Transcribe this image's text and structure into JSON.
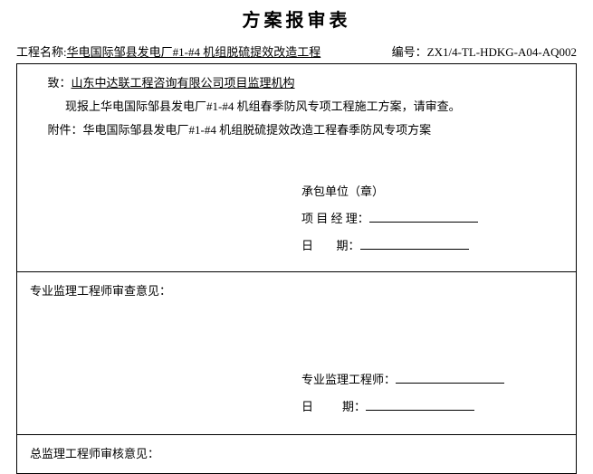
{
  "title": "方案报审表",
  "meta": {
    "projectNameLabel": "工程名称:",
    "projectName": "华电国际邹县发电厂#1-#4 机组脱硫提效改造工程",
    "codeLabel": "编号：",
    "code": "ZX1/4-TL-HDKG-A04-AQ002"
  },
  "section1": {
    "toLabel": "致：",
    "toValue": "山东中达联工程咨询有限公司项目监理机构",
    "body": "现报上华电国际邹县发电厂#1-#4 机组春季防风专项工程施工方案，请审查。",
    "attachLabel": "附件：",
    "attachValue": "华电国际邹县发电厂#1-#4 机组脱硫提效改造工程春季防风专项方案",
    "sig": {
      "unit": "承包单位（章）",
      "pmLabel": "项 目 经 理：",
      "dateLabel": "日",
      "dateLabel2": "期："
    }
  },
  "section2": {
    "heading": "专业监理工程师审查意见：",
    "sig": {
      "engLabel": "专业监理工程师：",
      "dateLabel": "日",
      "dateLabel2": "期："
    }
  },
  "section3": {
    "heading": "总监理工程师审核意见："
  }
}
